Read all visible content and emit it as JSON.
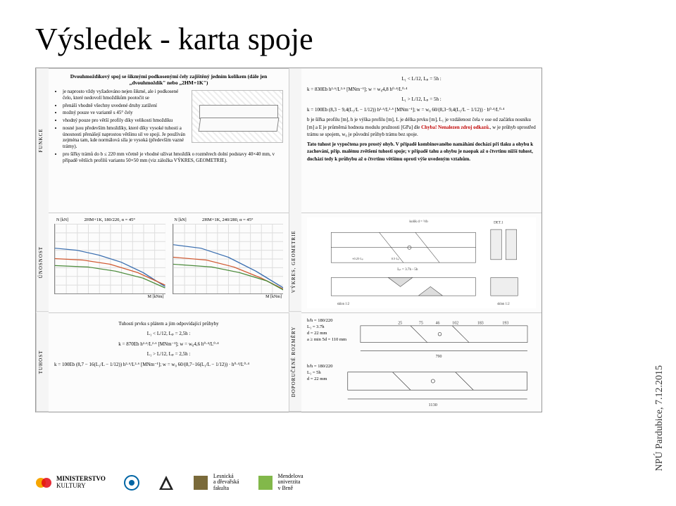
{
  "title": "Výsledek - karta spoje",
  "side_text": "NPÚ Pardubice, 7.12.2015",
  "panel": {
    "joint_title": "Dvouhmoždíkový spoj se šikmými podkosenými čely zajištěný jedním kolíkem (dále jen „dvouhmoždík\" nebo „2HM+1K\")",
    "vlabels": {
      "funkce": "FUNKCE",
      "unosnost": "ÚNOSNOST",
      "tuhost": "TUHOST",
      "vykres": "VÝKRES, GEOMETRIE",
      "rozmery": "DOPORUČENÉ ROZMĚRY"
    },
    "funkce_bullets": [
      "je naprosto vždy vyžadováno nejen šikmé, ale i podkosené čelo, které nedovolí hmoždíkům pootočit se",
      "přenáší vhodně všechny uvedené druhy zatížení",
      "možný pouze ve variantě s 45° čely",
      "vhodný pouze pro větší profily díky velikosti hmoždíku",
      "nosné jsou především hmoždíky, které díky vysoké tuhosti a únosnosti přenášejí naprostou většinu sil ve spoji. Je používán zejména tam, kde normálová síla je vysoká (především vazné trámy).",
      "pro šířky trámů do b ≤ 220 mm včetně je vhodné užívat hmoždík o rozměrech dolní podstavy 40×40 mm, v případě větších profilů variantu 50×50 mm (viz záložka VÝKRES, GEOMETRIE)."
    ],
    "chart1": {
      "title": "2HM+1K, 180/220, α = 45°",
      "ylabel": "N [kN]",
      "xlabel": "M [kNm]",
      "series_colors": [
        "#3b6fb0",
        "#d05830",
        "#4a8a3a"
      ],
      "y_range": [
        -90,
        60
      ],
      "x_range": [
        0,
        14
      ]
    },
    "chart2": {
      "title": "2HM+1K, 240/280, α = 45°",
      "ylabel": "N [kN]",
      "xlabel": "M [kNm]",
      "series_colors": [
        "#3b6fb0",
        "#d05830",
        "#4a8a3a"
      ],
      "y_range": [
        -100,
        100
      ],
      "x_range": [
        0,
        28
      ]
    },
    "tuhost_title": "Tuhosti prvku s plátem a jim odpovídající průhyby",
    "tuhost_lines": [
      "L₁ < L/12, Lₚ = 2,5h :",
      "k = 870Eb h²·⁶/L²·⁶ [MNm⁻¹];   w = w₀4,6 h⁰·⁴/L⁰·⁴",
      "L₁ > L/12, Lₚ = 2,5h :",
      "k = 100Eb (8,7 − 16(L₁/L − 1/12)) h²·⁶/L²·⁶ [MNm⁻¹];  w = w₀ 60/(8,7−16(L₁/L − 1/12)) · h⁰·⁴/L⁰·⁴"
    ],
    "right_top_lines": [
      "L₁ < L/12, Lₚ = 5h :",
      "k = 830Eb h²·⁶/L²·⁶ [MNm⁻¹];   w = w₀4,8 h⁰·⁴/L⁰·⁴",
      "L₁ > L/12, Lₚ = 5h :",
      "k = 100Eb (8,3 − 9,4(L₁/L − 1/12)) h²·⁶/L²·⁶ [MNm⁻¹];  w = w₀ 60/(8,3−9,4(L₁/L − 1/12)) · h⁰·⁴/L⁰·⁴"
    ],
    "right_top_para": "b je šířka profilu [m], h je výška profilu [m], L je délka prvku [m], L₁ je vzdálenost čela v ose od začátku nosníku [m] a E je průměrná hodnota modulu pružnosti [GPa] dle Chyba! Nenalezen zdroj odkazů., w je průhyb uprostřed trámu se spojem, w₀ je původní průhyb trámu bez spoje.",
    "right_top_para2": "Tato tuhost je vypočtena pro prostý ohyb. V případě kombinovaného namáhání dochází při tlaku a ohybu k zachování, příp. malému zvětšení tuhosti spoje; v případě tahu a ohybu je naopak až o čtvrtinu nižší tuhost, dochází tedy k průhybu až o čtvrtinu většímu oproti výše uvedeným vztahům.",
    "error_text": "Chyba! Nenalezen zdroj odkazů.",
    "drawing_labels": {
      "kolik": "kolík d = ½b",
      "det1": "DET.1",
      "lp": "Lₚ = 3.7h - 5h",
      "sklon": "sklon 1:2",
      "a": "≈0.25·Lₚ",
      "half": "0.5·Lₚ"
    },
    "rozmery": [
      {
        "head": "b/h = 180/220",
        "l1": "L₁ = 3.7h",
        "d": "d = 22 mm",
        "a": "a ≥ min 5d = 110 mm"
      },
      {
        "head": "b/h = 180/220",
        "l1": "L₁ = 5h",
        "d": "d = 22 mm",
        "a": ""
      }
    ],
    "dim_values": [
      "25",
      "75",
      "46",
      "102",
      "183",
      "193",
      "75",
      "790",
      "1130"
    ]
  },
  "logos": [
    {
      "name": "ministerstvo-kultury",
      "text1": "MINISTERSTVO",
      "text2": "KULTURY",
      "color1": "#f7a600",
      "color2": "#e30613"
    },
    {
      "name": "cvut",
      "color": "#0065a4"
    },
    {
      "name": "lesnicka",
      "text1": "Lesnická",
      "text2": "a dřevařská",
      "text3": "fakulta",
      "color": "#7a6a3a"
    },
    {
      "name": "mendelu",
      "text1": "Mendelova",
      "text2": "univerzita",
      "text3": "v Brně",
      "color": "#82b84a"
    }
  ]
}
